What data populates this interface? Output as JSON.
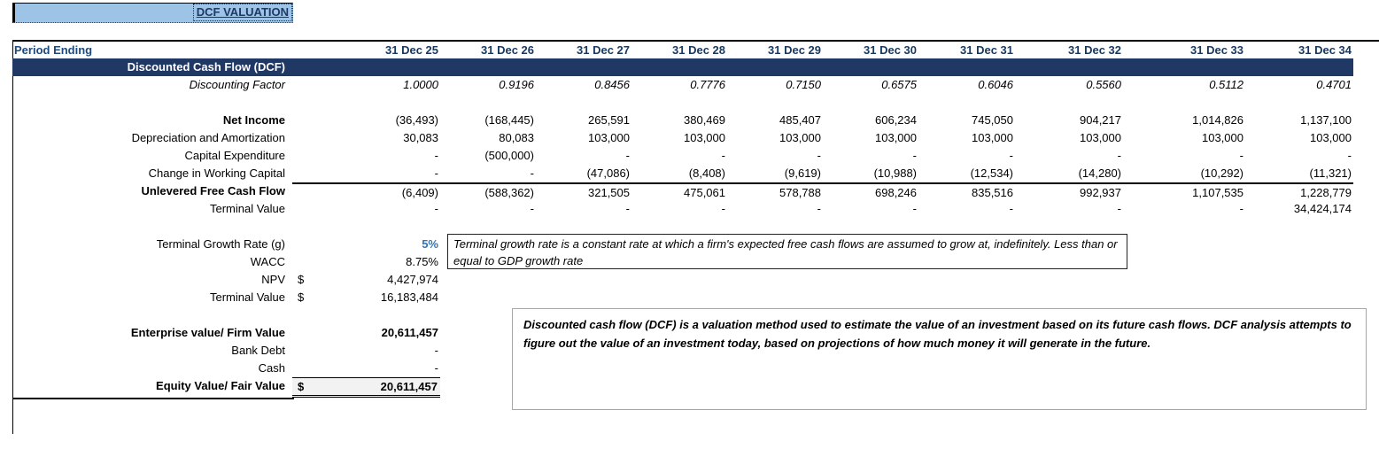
{
  "title": "DCF VALUATION",
  "table": {
    "header_label": "Period Ending",
    "columns": [
      "31 Dec 25",
      "31 Dec 26",
      "31 Dec 27",
      "31 Dec 28",
      "31 Dec 29",
      "31 Dec 30",
      "31 Dec 31",
      "31 Dec 32",
      "31 Dec 33",
      "31 Dec 34"
    ],
    "section_header": "Discounted Cash Flow (DCF)",
    "rows": [
      {
        "id": "discounting-factor",
        "label": "Discounting Factor",
        "italic": true,
        "values": [
          "1.0000",
          "0.9196",
          "0.8456",
          "0.7776",
          "0.7150",
          "0.6575",
          "0.6046",
          "0.5560",
          "0.5112",
          "0.4701"
        ]
      },
      {
        "id": "spacer-1",
        "label": "",
        "values": [
          "",
          "",
          "",
          "",
          "",
          "",
          "",
          "",
          "",
          ""
        ]
      },
      {
        "id": "net-income",
        "label": "Net Income",
        "bold": true,
        "values": [
          "(36,493)",
          "(168,445)",
          "265,591",
          "380,469",
          "485,407",
          "606,234",
          "745,050",
          "904,217",
          "1,014,826",
          "1,137,100"
        ]
      },
      {
        "id": "depreciation-amortization",
        "label": "Depreciation and Amortization",
        "values": [
          "30,083",
          "80,083",
          "103,000",
          "103,000",
          "103,000",
          "103,000",
          "103,000",
          "103,000",
          "103,000",
          "103,000"
        ]
      },
      {
        "id": "capital-expenditure",
        "label": "Capital Expenditure",
        "values": [
          "-",
          "(500,000)",
          "-",
          "-",
          "-",
          "-",
          "-",
          "-",
          "-",
          "-"
        ]
      },
      {
        "id": "change-in-working-capital",
        "label": "Change in Working Capital",
        "values": [
          "-",
          "-",
          "(47,086)",
          "(8,408)",
          "(9,619)",
          "(10,988)",
          "(12,534)",
          "(14,280)",
          "(10,292)",
          "(11,321)"
        ]
      },
      {
        "id": "unlevered-free-cash-flow",
        "label": "Unlevered Free Cash Flow",
        "bold": true,
        "topBorder": true,
        "values": [
          "(6,409)",
          "(588,362)",
          "321,505",
          "475,061",
          "578,788",
          "698,246",
          "835,516",
          "992,937",
          "1,107,535",
          "1,228,779"
        ]
      },
      {
        "id": "terminal-value",
        "label": "Terminal Value",
        "values": [
          "-",
          "-",
          "-",
          "-",
          "-",
          "-",
          "-",
          "-",
          "-",
          "34,424,174"
        ]
      }
    ]
  },
  "summary": {
    "terminal_growth": {
      "label": "Terminal Growth Rate (g)",
      "value": "5%"
    },
    "wacc": {
      "label": "WACC",
      "value": "8.75%"
    },
    "npv": {
      "label": "NPV",
      "currency": "$",
      "value": "4,427,974"
    },
    "terminal_value": {
      "label": "Terminal Value",
      "currency": "$",
      "value": "16,183,484"
    },
    "enterprise_value": {
      "label": "Enterprise value/ Firm Value",
      "value": "20,611,457"
    },
    "bank_debt": {
      "label": "Bank Debt",
      "value": "-"
    },
    "cash": {
      "label": "Cash",
      "value": "-"
    },
    "equity_value": {
      "label": "Equity Value/ Fair Value",
      "currency": "$",
      "value": "20,611,457"
    }
  },
  "notes": {
    "terminal_growth": "Terminal growth rate is a constant rate at which a firm's expected free cash flows are assumed to grow at, indefinitely. Less than or equal to GDP growth rate",
    "dcf_definition": "Discounted cash flow (DCF) is a valuation method used to estimate the value of an investment based on its future cash flows. DCF analysis attempts to figure out the value of an investment today, based on projections of how much money it will generate in the future."
  },
  "colors": {
    "section_band_navy": "#1F3864",
    "header_label_blue": "#1F497D",
    "date_header_navy": "#17375E",
    "growth_rate_blue": "#2E75B6",
    "banner_light_blue": "#9DC3E6",
    "equity_box_gray": "#F2F2F2",
    "note_border_gray": "#A6A6A6"
  }
}
